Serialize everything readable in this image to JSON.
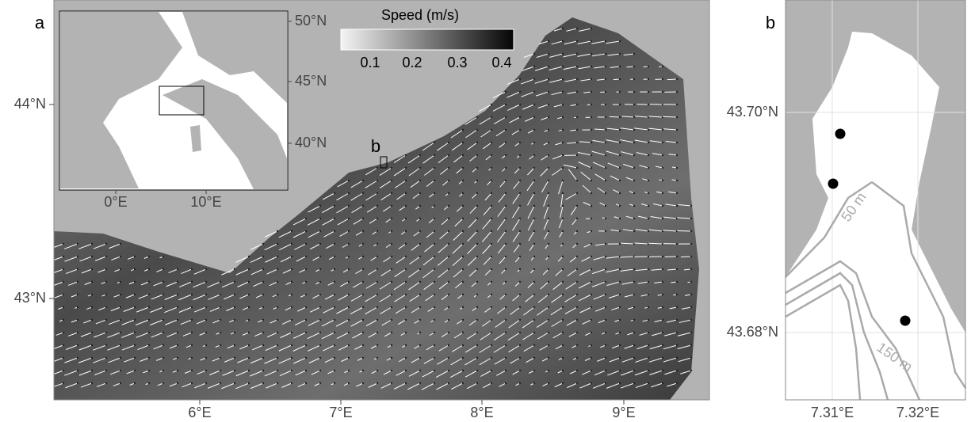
{
  "panel_a": {
    "label": "a",
    "colorbar": {
      "title": "Speed (m/s)",
      "ticks": [
        "0.1",
        "0.2",
        "0.3",
        "0.4"
      ]
    },
    "x_ticks": [
      "6°E",
      "7°E",
      "8°E",
      "9°E"
    ],
    "y_ticks": [
      "44°N",
      "43°N"
    ],
    "site_label": "b",
    "inset": {
      "x_ticks": [
        "0°E",
        "10°E"
      ],
      "y_ticks": [
        "50°N",
        "45°N",
        "40°N"
      ]
    }
  },
  "panel_b": {
    "label": "b",
    "x_ticks": [
      "7.31°E",
      "7.32°E"
    ],
    "y_ticks": [
      "43.70°N",
      "43.68°N"
    ],
    "contour_labels": [
      "50 m",
      "150 m"
    ]
  }
}
